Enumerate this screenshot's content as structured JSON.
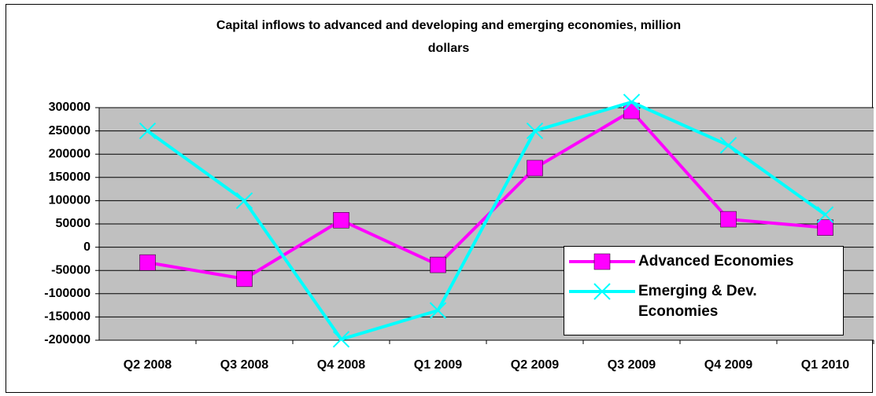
{
  "chart_data": {
    "type": "line",
    "title": "Capital inflows to advanced and developing and emerging economies, million dollars",
    "categories": [
      "Q2 2008",
      "Q3 2008",
      "Q4 2008",
      "Q1 2009",
      "Q2 2009",
      "Q3 2009",
      "Q4 2009",
      "Q1 2010"
    ],
    "series": [
      {
        "name": "Advanced Economies",
        "color": "#ff00ff",
        "marker": "square",
        "values": [
          -33000,
          -68000,
          58000,
          -38000,
          170000,
          293000,
          60000,
          42000
        ]
      },
      {
        "name": "Emerging & Dev. Economies",
        "color": "#00ffff",
        "marker": "x",
        "values": [
          250000,
          100000,
          -198000,
          -136000,
          250000,
          312000,
          219000,
          70000
        ]
      }
    ],
    "ylim": [
      -200000,
      300000
    ],
    "yticks": [
      -200000,
      -150000,
      -100000,
      -50000,
      0,
      50000,
      100000,
      150000,
      200000,
      250000,
      300000
    ],
    "grid": true,
    "plot_background": "#c0c0c0",
    "legend": "lower right"
  }
}
